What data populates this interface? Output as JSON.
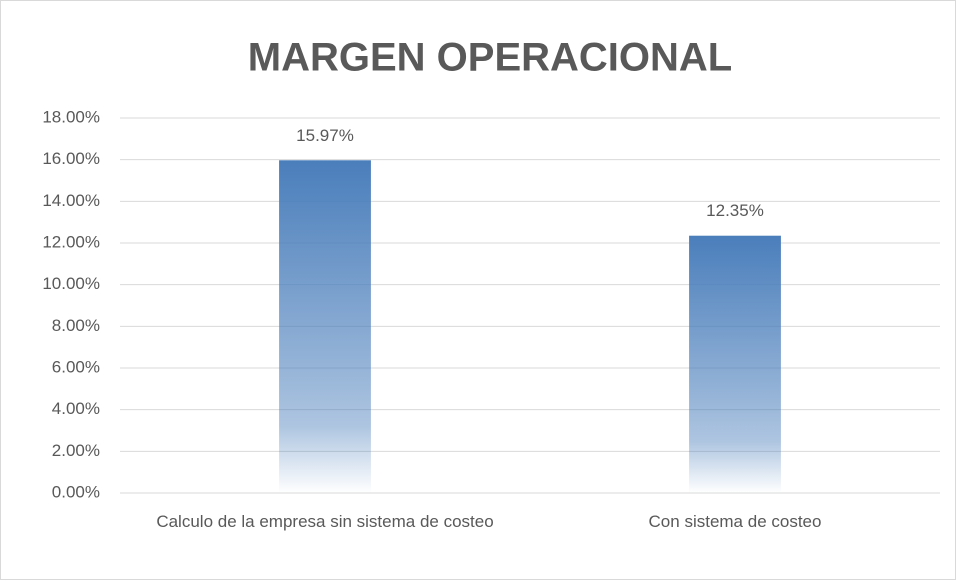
{
  "chart_data": {
    "type": "bar",
    "title": "MARGEN OPERACIONAL",
    "categories": [
      "Calculo de la empresa sin sistema de costeo",
      "Con sistema de costeo"
    ],
    "values": [
      15.97,
      12.35
    ],
    "value_labels": [
      "15.97%",
      "12.35%"
    ],
    "color": "#4a7ebb",
    "ylim": [
      0,
      18
    ],
    "yticks": [
      {
        "value": 0,
        "label": "0.00%"
      },
      {
        "value": 2,
        "label": "2.00%"
      },
      {
        "value": 4,
        "label": "4.00%"
      },
      {
        "value": 6,
        "label": "6.00%"
      },
      {
        "value": 8,
        "label": "8.00%"
      },
      {
        "value": 10,
        "label": "10.00%"
      },
      {
        "value": 12,
        "label": "12.00%"
      },
      {
        "value": 14,
        "label": "14.00%"
      },
      {
        "value": 16,
        "label": "16.00%"
      },
      {
        "value": 18,
        "label": "18.00%"
      }
    ],
    "grid": true
  }
}
